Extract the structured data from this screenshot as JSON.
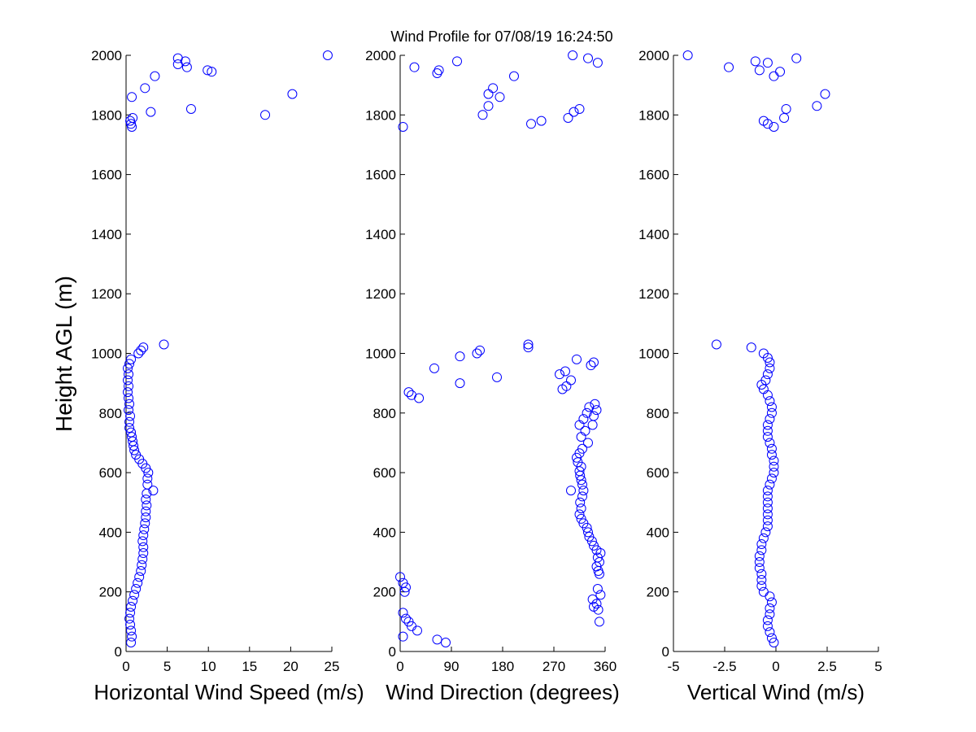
{
  "title": "Wind Profile for  07/08/19 16:24:50",
  "ylabel": "Height AGL (m)",
  "colors": {
    "marker": "#0000ff",
    "axes": "#000000",
    "background": "#ffffff"
  },
  "chart_data": [
    {
      "type": "scatter",
      "xlabel": "Horizontal Wind Speed (m/s)",
      "xlim": [
        0,
        25
      ],
      "xticks": [
        0,
        5,
        10,
        15,
        20,
        25
      ],
      "xticklabels": [
        "0",
        "5",
        "10",
        "15",
        "20",
        "25"
      ],
      "ylim": [
        0,
        2000
      ],
      "yticks": [
        0,
        200,
        400,
        600,
        800,
        1000,
        1200,
        1400,
        1600,
        1800,
        2000
      ],
      "yticklabels": [
        "0",
        "200",
        "400",
        "600",
        "800",
        "1000",
        "1200",
        "1400",
        "1600",
        "1800",
        "2000"
      ],
      "series": [
        {
          "name": "speed",
          "points": [
            [
              0.6,
              30
            ],
            [
              0.7,
              50
            ],
            [
              0.6,
              70
            ],
            [
              0.5,
              90
            ],
            [
              0.4,
              110
            ],
            [
              0.5,
              130
            ],
            [
              0.6,
              150
            ],
            [
              0.8,
              170
            ],
            [
              1.0,
              190
            ],
            [
              1.2,
              210
            ],
            [
              1.4,
              230
            ],
            [
              1.6,
              250
            ],
            [
              1.8,
              270
            ],
            [
              1.9,
              290
            ],
            [
              2.0,
              310
            ],
            [
              2.1,
              330
            ],
            [
              2.1,
              350
            ],
            [
              2.0,
              370
            ],
            [
              2.1,
              390
            ],
            [
              2.2,
              410
            ],
            [
              2.3,
              430
            ],
            [
              2.4,
              450
            ],
            [
              2.4,
              470
            ],
            [
              2.5,
              490
            ],
            [
              2.4,
              510
            ],
            [
              2.5,
              530
            ],
            [
              3.3,
              540
            ],
            [
              2.6,
              560
            ],
            [
              2.6,
              580
            ],
            [
              2.7,
              600
            ],
            [
              2.4,
              615
            ],
            [
              2.0,
              630
            ],
            [
              1.6,
              645
            ],
            [
              1.2,
              660
            ],
            [
              1.0,
              675
            ],
            [
              0.9,
              690
            ],
            [
              0.8,
              705
            ],
            [
              0.7,
              720
            ],
            [
              0.6,
              735
            ],
            [
              0.4,
              750
            ],
            [
              0.4,
              770
            ],
            [
              0.5,
              790
            ],
            [
              0.3,
              810
            ],
            [
              0.4,
              830
            ],
            [
              0.3,
              850
            ],
            [
              0.2,
              870
            ],
            [
              0.3,
              890
            ],
            [
              0.2,
              910
            ],
            [
              0.3,
              930
            ],
            [
              0.2,
              950
            ],
            [
              0.4,
              965
            ],
            [
              0.6,
              980
            ],
            [
              1.5,
              1000
            ],
            [
              1.8,
              1010
            ],
            [
              2.1,
              1020
            ],
            [
              4.6,
              1030
            ],
            [
              0.7,
              1760
            ],
            [
              0.6,
              1770
            ],
            [
              0.5,
              1780
            ],
            [
              0.8,
              1790
            ],
            [
              16.9,
              1800
            ],
            [
              3.0,
              1810
            ],
            [
              7.9,
              1820
            ],
            [
              0.7,
              1860
            ],
            [
              20.2,
              1870
            ],
            [
              2.3,
              1890
            ],
            [
              3.5,
              1930
            ],
            [
              10.4,
              1945
            ],
            [
              9.9,
              1950
            ],
            [
              7.4,
              1960
            ],
            [
              6.3,
              1970
            ],
            [
              7.2,
              1980
            ],
            [
              6.3,
              1990
            ],
            [
              24.5,
              2000
            ]
          ]
        }
      ]
    },
    {
      "type": "scatter",
      "xlabel": "Wind Direction (degrees)",
      "xlim": [
        0,
        360
      ],
      "xticks": [
        0,
        90,
        180,
        270,
        360
      ],
      "xticklabels": [
        "0",
        "90",
        "180",
        "270",
        "360"
      ],
      "ylim": [
        0,
        2000
      ],
      "yticks": [
        0,
        200,
        400,
        600,
        800,
        1000,
        1200,
        1400,
        1600,
        1800,
        2000
      ],
      "yticklabels": [
        "0",
        "200",
        "400",
        "600",
        "800",
        "1000",
        "1200",
        "1400",
        "1600",
        "1800",
        "2000"
      ],
      "series": [
        {
          "name": "direction",
          "points": [
            [
              80,
              30
            ],
            [
              65,
              40
            ],
            [
              5,
              50
            ],
            [
              30,
              70
            ],
            [
              20,
              85
            ],
            [
              15,
              100
            ],
            [
              10,
              110
            ],
            [
              5,
              130
            ],
            [
              350,
              100
            ],
            [
              348,
              140
            ],
            [
              340,
              150
            ],
            [
              345,
              160
            ],
            [
              338,
              175
            ],
            [
              352,
              190
            ],
            [
              347,
              210
            ],
            [
              10,
              215
            ],
            [
              8,
              200
            ],
            [
              5,
              230
            ],
            [
              0,
              250
            ],
            [
              350,
              260
            ],
            [
              348,
              270
            ],
            [
              345,
              285
            ],
            [
              350,
              300
            ],
            [
              347,
              315
            ],
            [
              352,
              330
            ],
            [
              345,
              340
            ],
            [
              340,
              355
            ],
            [
              337,
              370
            ],
            [
              332,
              385
            ],
            [
              330,
              400
            ],
            [
              328,
              415
            ],
            [
              322,
              430
            ],
            [
              318,
              445
            ],
            [
              315,
              460
            ],
            [
              318,
              480
            ],
            [
              316,
              500
            ],
            [
              320,
              520
            ],
            [
              322,
              540
            ],
            [
              300,
              540
            ],
            [
              320,
              560
            ],
            [
              318,
              575
            ],
            [
              316,
              590
            ],
            [
              315,
              605
            ],
            [
              318,
              620
            ],
            [
              312,
              635
            ],
            [
              310,
              650
            ],
            [
              315,
              665
            ],
            [
              320,
              680
            ],
            [
              330,
              700
            ],
            [
              318,
              720
            ],
            [
              325,
              740
            ],
            [
              315,
              760
            ],
            [
              322,
              780
            ],
            [
              328,
              800
            ],
            [
              340,
              790
            ],
            [
              332,
              820
            ],
            [
              342,
              830
            ],
            [
              345,
              810
            ],
            [
              338,
              760
            ],
            [
              20,
              860
            ],
            [
              15,
              870
            ],
            [
              33,
              850
            ],
            [
              105,
              900
            ],
            [
              170,
              920
            ],
            [
              285,
              880
            ],
            [
              292,
              890
            ],
            [
              300,
              910
            ],
            [
              280,
              930
            ],
            [
              290,
              940
            ],
            [
              335,
              960
            ],
            [
              340,
              970
            ],
            [
              310,
              980
            ],
            [
              60,
              950
            ],
            [
              105,
              990
            ],
            [
              135,
              1000
            ],
            [
              140,
              1010
            ],
            [
              225,
              1020
            ],
            [
              225,
              1030
            ],
            [
              5,
              1760
            ],
            [
              230,
              1770
            ],
            [
              248,
              1780
            ],
            [
              295,
              1790
            ],
            [
              145,
              1800
            ],
            [
              305,
              1810
            ],
            [
              315,
              1820
            ],
            [
              155,
              1830
            ],
            [
              175,
              1860
            ],
            [
              155,
              1870
            ],
            [
              163,
              1890
            ],
            [
              200,
              1930
            ],
            [
              65,
              1940
            ],
            [
              68,
              1950
            ],
            [
              25,
              1960
            ],
            [
              100,
              1980
            ],
            [
              330,
              1990
            ],
            [
              303,
              2000
            ],
            [
              347,
              1975
            ]
          ]
        }
      ]
    },
    {
      "type": "scatter",
      "xlabel": "Vertical Wind (m/s)",
      "xlim": [
        -5,
        5
      ],
      "xticks": [
        -5,
        -2.5,
        0,
        2.5,
        5
      ],
      "xticklabels": [
        "-5",
        "-2.5",
        "0",
        "2.5",
        "5"
      ],
      "ylim": [
        0,
        2000
      ],
      "yticks": [
        0,
        200,
        400,
        600,
        800,
        1000,
        1200,
        1400,
        1600,
        1800,
        2000
      ],
      "yticklabels": [
        "0",
        "200",
        "400",
        "600",
        "800",
        "1000",
        "1200",
        "1400",
        "1600",
        "1800",
        "2000"
      ],
      "series": [
        {
          "name": "vertical",
          "points": [
            [
              -0.1,
              30
            ],
            [
              -0.2,
              45
            ],
            [
              -0.3,
              65
            ],
            [
              -0.4,
              85
            ],
            [
              -0.4,
              105
            ],
            [
              -0.3,
              125
            ],
            [
              -0.3,
              145
            ],
            [
              -0.2,
              165
            ],
            [
              -0.3,
              185
            ],
            [
              -0.6,
              200
            ],
            [
              -0.7,
              220
            ],
            [
              -0.7,
              240
            ],
            [
              -0.7,
              260
            ],
            [
              -0.8,
              280
            ],
            [
              -0.8,
              300
            ],
            [
              -0.8,
              320
            ],
            [
              -0.7,
              340
            ],
            [
              -0.7,
              360
            ],
            [
              -0.6,
              380
            ],
            [
              -0.5,
              400
            ],
            [
              -0.4,
              420
            ],
            [
              -0.4,
              440
            ],
            [
              -0.4,
              460
            ],
            [
              -0.4,
              480
            ],
            [
              -0.4,
              500
            ],
            [
              -0.4,
              520
            ],
            [
              -0.4,
              540
            ],
            [
              -0.3,
              560
            ],
            [
              -0.2,
              580
            ],
            [
              -0.1,
              600
            ],
            [
              -0.1,
              620
            ],
            [
              -0.1,
              640
            ],
            [
              -0.2,
              660
            ],
            [
              -0.2,
              680
            ],
            [
              -0.3,
              700
            ],
            [
              -0.4,
              720
            ],
            [
              -0.4,
              740
            ],
            [
              -0.4,
              760
            ],
            [
              -0.3,
              780
            ],
            [
              -0.2,
              800
            ],
            [
              -0.2,
              820
            ],
            [
              -0.3,
              840
            ],
            [
              -0.4,
              860
            ],
            [
              -0.6,
              880
            ],
            [
              -0.7,
              895
            ],
            [
              -0.5,
              910
            ],
            [
              -0.4,
              930
            ],
            [
              -0.3,
              950
            ],
            [
              -0.3,
              970
            ],
            [
              -0.4,
              985
            ],
            [
              -0.6,
              1000
            ],
            [
              -1.2,
              1020
            ],
            [
              -2.9,
              1030
            ],
            [
              -0.1,
              1760
            ],
            [
              -0.4,
              1770
            ],
            [
              -0.6,
              1780
            ],
            [
              0.4,
              1790
            ],
            [
              2.0,
              1830
            ],
            [
              0.5,
              1820
            ],
            [
              2.4,
              1870
            ],
            [
              -0.1,
              1930
            ],
            [
              0.2,
              1945
            ],
            [
              -0.8,
              1950
            ],
            [
              -0.4,
              1975
            ],
            [
              -1.0,
              1980
            ],
            [
              1.0,
              1990
            ],
            [
              -2.3,
              1960
            ],
            [
              -4.3,
              2000
            ]
          ]
        }
      ]
    }
  ]
}
